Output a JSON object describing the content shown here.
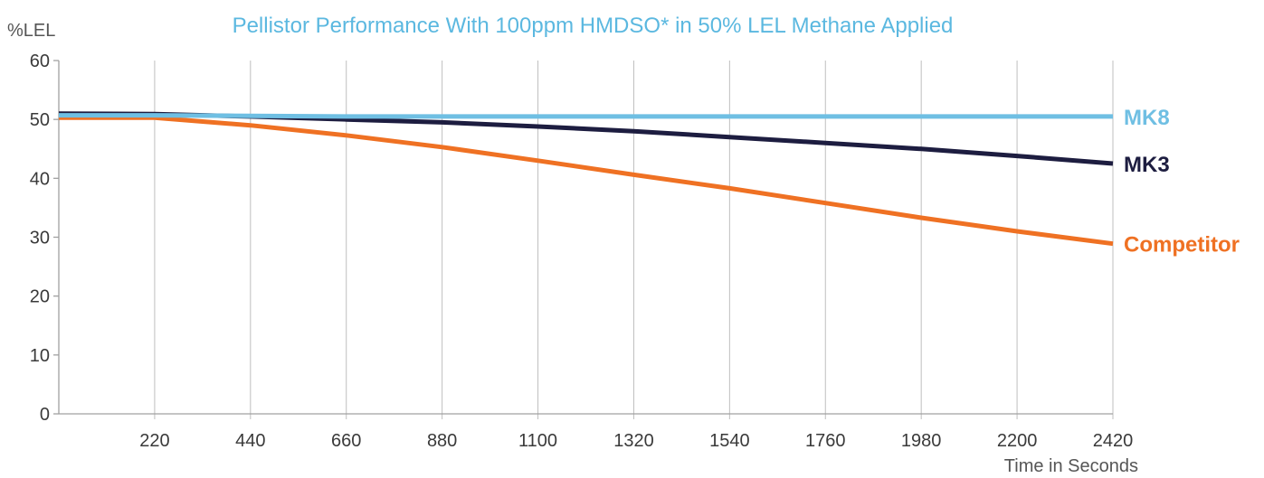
{
  "chart_data": {
    "type": "line",
    "title": "Pellistor Performance With 100ppm HMDSO* in 50% LEL Methane Applied",
    "ylabel": "%LEL",
    "xlabel": "Time in Seconds",
    "xlim": [
      0,
      2420
    ],
    "ylim": [
      0,
      60
    ],
    "x_ticks": [
      220,
      440,
      660,
      880,
      1100,
      1320,
      1540,
      1760,
      1980,
      2200,
      2420
    ],
    "y_ticks": [
      0,
      10,
      20,
      30,
      40,
      50,
      60
    ],
    "grid": "vertical",
    "series": [
      {
        "name": "MK8",
        "color": "#6fbfe3",
        "x": [
          0,
          220,
          440,
          660,
          880,
          1100,
          1320,
          1540,
          1760,
          1980,
          2200,
          2420
        ],
        "values": [
          50.7,
          50.7,
          50.6,
          50.5,
          50.5,
          50.5,
          50.5,
          50.5,
          50.5,
          50.5,
          50.5,
          50.5
        ]
      },
      {
        "name": "MK3",
        "color": "#1d1d40",
        "x": [
          0,
          220,
          440,
          660,
          880,
          1100,
          1320,
          1540,
          1760,
          1980,
          2200,
          2420
        ],
        "values": [
          51.0,
          50.9,
          50.5,
          50.0,
          49.5,
          48.8,
          48.0,
          47.0,
          46.0,
          45.0,
          43.8,
          42.5
        ]
      },
      {
        "name": "Competitor",
        "color": "#ef7123",
        "x": [
          0,
          220,
          440,
          660,
          880,
          1100,
          1320,
          1540,
          1760,
          1980,
          2200,
          2420
        ],
        "values": [
          50.3,
          50.3,
          49.0,
          47.3,
          45.3,
          43.0,
          40.6,
          38.3,
          35.8,
          33.3,
          31.0,
          28.9
        ]
      }
    ]
  }
}
